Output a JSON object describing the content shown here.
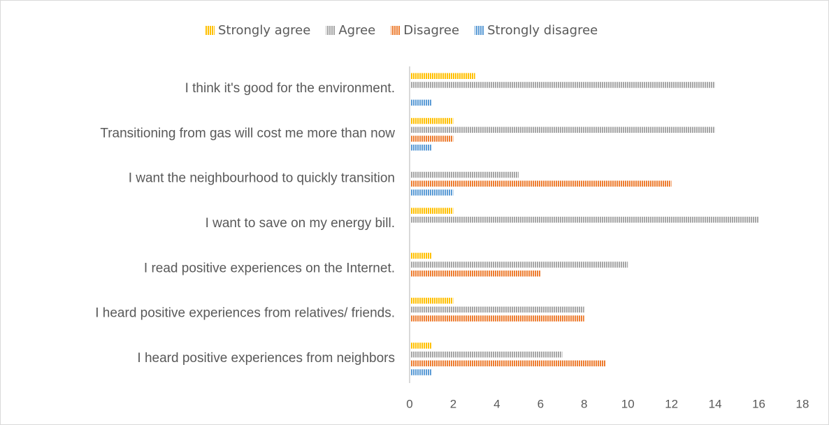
{
  "chart_data": {
    "type": "hbar",
    "categories": [
      "I think it's good for  the environment.",
      "Transitioning from  gas will cost me more than now",
      "I want the neighbourhood to quickly transition",
      "I want to save on my energy bill.",
      "I read positive experiences on the Internet.",
      "I heard positive experiences from relatives/ friends.",
      "I heard positive experiences from  neighbors"
    ],
    "series": [
      {
        "name": "Strongly agree",
        "color": "#ffc000",
        "values": [
          3,
          2,
          0,
          2,
          1,
          2,
          1
        ]
      },
      {
        "name": "Agree",
        "color": "#a5a5a5",
        "values": [
          14,
          14,
          5,
          16,
          10,
          8,
          7
        ]
      },
      {
        "name": "Disagree",
        "color": "#ed7d31",
        "values": [
          0,
          2,
          12,
          0,
          6,
          8,
          9
        ]
      },
      {
        "name": "Strongly disagree",
        "color": "#5b9bd5",
        "values": [
          1,
          1,
          2,
          0,
          0,
          0,
          1
        ]
      }
    ],
    "xlim": [
      0,
      18
    ],
    "xticks": [
      0,
      2,
      4,
      6,
      8,
      10,
      12,
      14,
      16,
      18
    ],
    "legend": "top",
    "grid": false
  }
}
